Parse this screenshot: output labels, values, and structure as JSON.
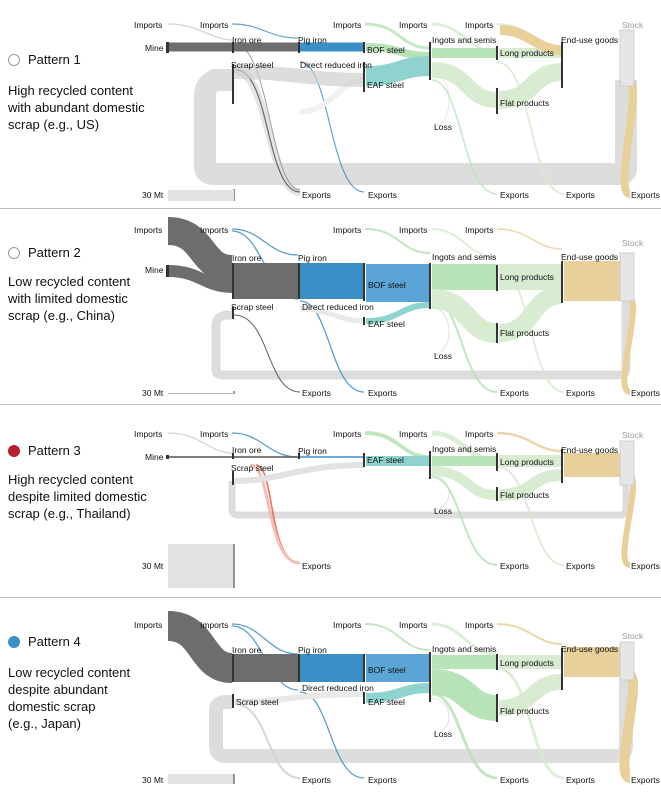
{
  "panels": [
    {
      "pattern_label": "Pattern 1",
      "marker_color": "none",
      "description": [
        "High recycled content",
        "with abundant domestic",
        "scrap (e.g., US)"
      ],
      "scale_label": "30 Mt",
      "nodes": {
        "imports_raw": "Imports",
        "mine": "Mine",
        "imports_ore": "Imports",
        "iron_ore": "Iron ore",
        "scrap_steel": "Scrap steel",
        "pig_iron": "Pig iron",
        "dri": "Direct reduced iron",
        "imports_steel": "Imports",
        "bof": "BOF steel",
        "eaf": "EAF steel",
        "imports_ingots": "Imports",
        "ingots": "Ingots and semis",
        "loss": "Loss",
        "imports_products": "Imports",
        "long": "Long products",
        "flat": "Flat products",
        "end_use": "End-use goods",
        "stock": "Stock",
        "exp_scrap": "Exports",
        "exp_steel": "Exports",
        "exp_ingots": "Exports",
        "exp_products": "Exports",
        "exp_goods": "Exports"
      }
    },
    {
      "pattern_label": "Pattern 2",
      "marker_color": "none",
      "description": [
        "Low recycled content",
        "with limited domestic",
        "scrap (e.g., China)"
      ],
      "scale_label": "30 Mt",
      "nodes": {
        "imports_raw": "Imports",
        "mine": "Mine",
        "imports_ore": "Imports",
        "iron_ore": "Iron ore",
        "scrap_steel": "Scrap steel",
        "pig_iron": "Pig iron",
        "dri": "Direct reduced iron",
        "imports_steel": "Imports",
        "bof": "BOF steel",
        "eaf": "EAF steel",
        "imports_ingots": "Imports",
        "ingots": "Ingots and semis",
        "loss": "Loss",
        "imports_products": "Imports",
        "long": "Long products",
        "flat": "Flat products",
        "end_use": "End-use goods",
        "stock": "Stock",
        "exp_scrap": "Exports",
        "exp_steel": "Exports",
        "exp_ingots": "Exports",
        "exp_products": "Exports",
        "exp_goods": "Exports"
      }
    },
    {
      "pattern_label": "Pattern 3",
      "marker_color": "#b7202e",
      "description": [
        "High recycled content",
        "despite limited domestic",
        "scrap (e.g., Thailand)"
      ],
      "scale_label": "30 Mt",
      "nodes": {
        "imports_raw": "Imports",
        "mine": "Mine",
        "imports_ore": "Imports",
        "iron_ore": "Iron ore",
        "scrap_steel": "Scrap steel",
        "pig_iron": "Pig iron",
        "imports_steel": "Imports",
        "eaf": "EAF steel",
        "imports_ingots": "Imports",
        "ingots": "Ingots and semis",
        "loss": "Loss",
        "imports_products": "Imports",
        "long": "Long products",
        "flat": "Flat products",
        "end_use": "End-use goods",
        "stock": "Stock",
        "exp_scrap": "Exports",
        "exp_ingots": "Exports",
        "exp_products": "Exports",
        "exp_goods": "Exports"
      }
    },
    {
      "pattern_label": "Pattern 4",
      "marker_color": "#3a8fc7",
      "description": [
        "Low recycled content",
        "despite abundant",
        "domestic scrap",
        "(e.g., Japan)"
      ],
      "scale_label": "30 Mt",
      "nodes": {
        "imports_raw": "Imports",
        "imports_ore": "Imports",
        "iron_ore": "Iron ore",
        "scrap_steel": "Scrap steel",
        "pig_iron": "Pig iron",
        "dri": "Direct reduced iron",
        "imports_steel": "Imports",
        "bof": "BOF steel",
        "eaf": "EAF steel",
        "imports_ingots": "Imports",
        "ingots": "Ingots and semis",
        "loss": "Loss",
        "imports_products": "Imports",
        "long": "Long products",
        "flat": "Flat products",
        "end_use": "End-use goods",
        "stock": "Stock",
        "exp_scrap": "Exports",
        "exp_steel": "Exports",
        "exp_ingots": "Exports",
        "exp_products": "Exports",
        "exp_goods": "Exports"
      }
    }
  ],
  "colors": {
    "ore": "#6d6d6d",
    "iron": "#3a8fc7",
    "eaf": "#8fd3cf",
    "ingot": "#b7e3b7",
    "product": "#d7ecd0",
    "goods": "#e8d09a",
    "scrap": "#dddddd",
    "stock": "#e6e6e6",
    "pattern3": "#b7202e",
    "pattern4": "#3a8fc7"
  }
}
